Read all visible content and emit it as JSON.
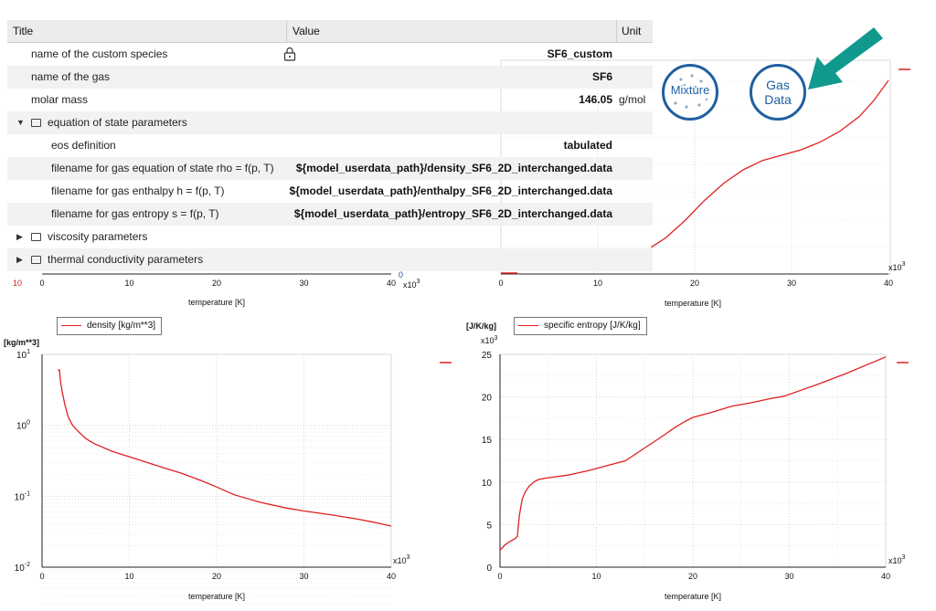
{
  "table": {
    "headers": {
      "title": "Title",
      "value": "Value",
      "unit": "Unit"
    },
    "rows": [
      {
        "title": "name of the custom species",
        "value": "SF6_custom",
        "unit": "",
        "lock": true
      },
      {
        "title": "name of the gas",
        "value": "SF6",
        "unit": ""
      },
      {
        "title": "molar mass",
        "value": "146.05",
        "unit": "g/mol"
      },
      {
        "title": "equation of state parameters",
        "value": "",
        "unit": "",
        "group": "expanded"
      },
      {
        "title": "eos definition",
        "value": "tabulated",
        "unit": ""
      },
      {
        "title": "filename for gas equation of state rho = f(p, T)",
        "value": "${model_userdata_path}/density_SF6_2D_interchanged.data",
        "unit": ""
      },
      {
        "title": "filename for gas enthalpy h = f(p, T)",
        "value": "${model_userdata_path}/enthalpy_SF6_2D_interchanged.data",
        "unit": ""
      },
      {
        "title": "filename for gas entropy s = f(p, T)",
        "value": "${model_userdata_path}/entropy_SF6_2D_interchanged.data",
        "unit": ""
      },
      {
        "title": "viscosity parameters",
        "value": "",
        "unit": "",
        "group": "collapsed"
      },
      {
        "title": "thermal conductivity parameters",
        "value": "",
        "unit": "",
        "group": "collapsed"
      }
    ]
  },
  "buttons": {
    "mixture_label": "Mixture",
    "gas_data_line1": "Gas",
    "gas_data_line2": "Data"
  },
  "colors": {
    "teal_arrow": "#11998e",
    "icon_blue": "#1f5fa0",
    "series_red": "#e02020"
  },
  "chart_data": [
    {
      "type": "line",
      "id": "top-left-partial",
      "x_ticks": [
        "0",
        "10",
        "20",
        "30",
        "40"
      ],
      "xlabel": "temperature [K]",
      "x_multiplier": "x10",
      "x_multiplier_exp": "3",
      "partial_tick_labels": [
        "10",
        "0"
      ]
    },
    {
      "type": "line",
      "id": "top-right-enthalpy-partial",
      "x_ticks": [
        "0",
        "10",
        "20",
        "30",
        "40"
      ],
      "xlabel": "temperature [K]",
      "x_multiplier": "x10",
      "x_multiplier_exp": "3",
      "series_points": [
        [
          15.5,
          0.2
        ],
        [
          17,
          0.27
        ],
        [
          19,
          0.4
        ],
        [
          21,
          0.55
        ],
        [
          23,
          0.68
        ],
        [
          25,
          0.78
        ],
        [
          27,
          0.85
        ],
        [
          29,
          0.89
        ],
        [
          31,
          0.93
        ],
        [
          33,
          0.99
        ],
        [
          35,
          1.07
        ],
        [
          37,
          1.18
        ],
        [
          38.5,
          1.3
        ],
        [
          40,
          1.45
        ]
      ]
    },
    {
      "type": "line",
      "id": "density",
      "legend": "density [kg/m**3]",
      "ylabel": "[kg/m**3]",
      "y_scale": "log",
      "ylim": [
        0.01,
        10
      ],
      "y_tick_base": "10",
      "y_tick_exps": [
        "1",
        "0",
        "-1",
        "-2"
      ],
      "x_ticks": [
        "0",
        "10",
        "20",
        "30",
        "40"
      ],
      "xlim": [
        0,
        40
      ],
      "xlabel": "temperature [K]",
      "x_multiplier": "x10",
      "x_multiplier_exp": "3",
      "series": [
        {
          "name": "density [kg/m**3]",
          "x": [
            1.8,
            2.0,
            2.1,
            2.3,
            2.6,
            3.0,
            3.5,
            4.0,
            5.0,
            6.0,
            8.0,
            10.0,
            12.0,
            14.0,
            16.0,
            18.0,
            20.0,
            22.0,
            25.0,
            28.0,
            30.0,
            33.0,
            36.0,
            38.0,
            40.0
          ],
          "y": [
            6.0,
            6.0,
            4.2,
            3.0,
            2.0,
            1.3,
            1.0,
            0.85,
            0.65,
            0.55,
            0.43,
            0.36,
            0.3,
            0.25,
            0.21,
            0.17,
            0.135,
            0.105,
            0.082,
            0.068,
            0.062,
            0.055,
            0.048,
            0.043,
            0.038
          ]
        }
      ]
    },
    {
      "type": "line",
      "id": "specific-entropy",
      "legend": "specific entropy [J/K/kg]",
      "ylabel": "[J/K/kg]",
      "y_multiplier": "x10",
      "y_multiplier_exp": "3",
      "ylim": [
        0,
        25
      ],
      "y_ticks": [
        "25",
        "20",
        "15",
        "10",
        "5",
        "0"
      ],
      "x_ticks": [
        "0",
        "10",
        "20",
        "30",
        "40"
      ],
      "xlim": [
        0,
        40
      ],
      "xlabel": "temperature [K]",
      "x_multiplier": "x10",
      "x_multiplier_exp": "3",
      "series": [
        {
          "name": "specific entropy [J/K/kg]",
          "x": [
            0.0,
            0.5,
            1.0,
            1.5,
            1.8,
            2.0,
            2.3,
            2.6,
            3.0,
            3.5,
            4.0,
            5.0,
            7.0,
            9.0,
            11.0,
            13.0,
            15.0,
            17.0,
            18.0,
            19.0,
            20.0,
            22.0,
            24.0,
            26.0,
            28.0,
            29.5,
            30.0,
            33.0,
            36.0,
            40.0
          ],
          "y": [
            2.0,
            2.6,
            3.0,
            3.3,
            3.6,
            6.0,
            8.0,
            8.8,
            9.5,
            10.0,
            10.3,
            10.5,
            10.8,
            11.3,
            11.9,
            12.5,
            14.0,
            15.5,
            16.3,
            17.0,
            17.6,
            18.2,
            18.9,
            19.3,
            19.8,
            20.1,
            20.3,
            21.5,
            22.8,
            24.7
          ]
        }
      ]
    }
  ]
}
